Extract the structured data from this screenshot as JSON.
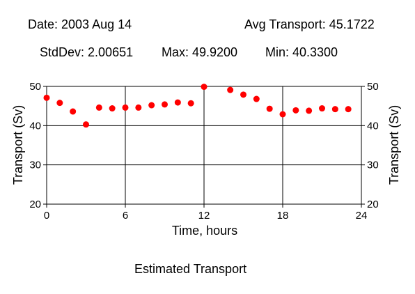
{
  "header": {
    "date": "Date: 2003 Aug 14",
    "avg": "Avg Transport: 45.1722",
    "stddev": "StdDev: 2.00651",
    "max": "Max: 49.9200",
    "min": "Min: 40.3300"
  },
  "footer": {
    "caption": "Estimated Transport"
  },
  "chart_data": {
    "type": "scatter",
    "xlabel": "Time, hours",
    "ylabel": "Transport (Sv)",
    "xlim": [
      0,
      24
    ],
    "ylim": [
      20,
      50
    ],
    "xticks": [
      "0",
      "6",
      "12",
      "18",
      "24"
    ],
    "xtick_values": [
      0,
      6,
      12,
      18,
      24
    ],
    "yticks": [
      "20",
      "30",
      "40",
      "50"
    ],
    "ytick_values": [
      20,
      30,
      40,
      50
    ],
    "grid": true,
    "marker_color": "#ff0000",
    "series": [
      {
        "x": [
          0,
          1,
          2,
          3,
          4,
          5,
          6,
          7,
          8,
          9,
          10,
          11,
          12,
          14,
          15,
          16,
          17,
          18,
          19,
          20,
          21,
          22,
          23
        ],
        "y": [
          47.1,
          45.8,
          43.6,
          40.3,
          44.6,
          44.4,
          44.6,
          44.6,
          45.2,
          45.4,
          45.9,
          45.7,
          49.9,
          49.1,
          47.9,
          46.8,
          44.3,
          42.9,
          43.9,
          43.8,
          44.4,
          44.2,
          44.2
        ]
      }
    ]
  }
}
